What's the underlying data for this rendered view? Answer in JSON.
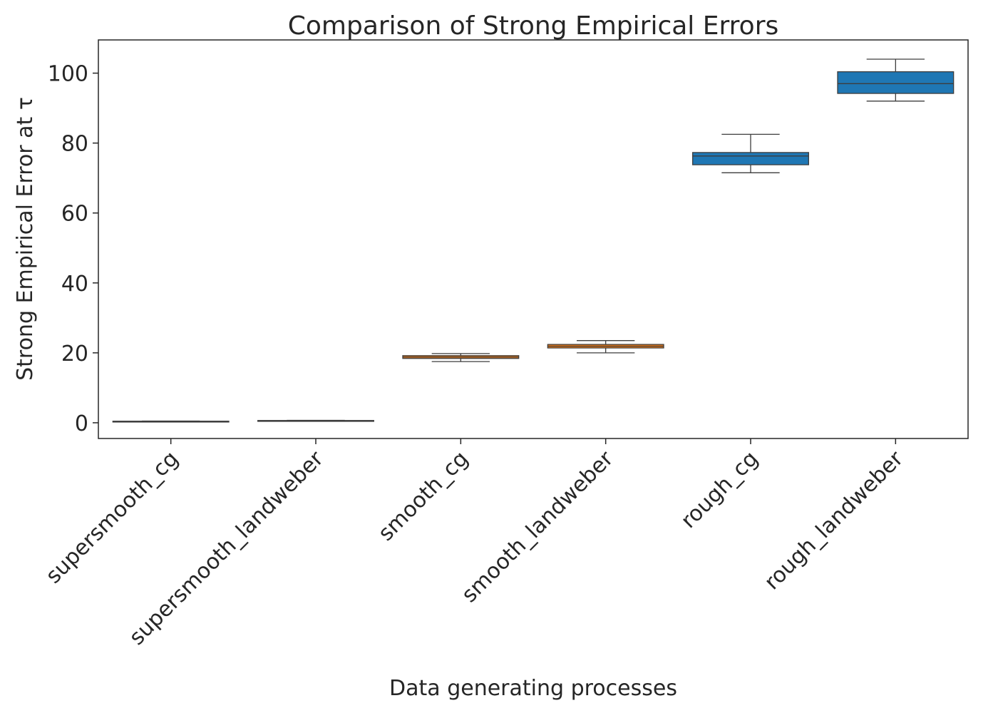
{
  "chart_data": {
    "type": "boxplot",
    "title": "Comparison of Strong Empirical Errors",
    "xlabel": "Data generating processes",
    "ylabel": "Strong Empirical Error at τ",
    "ylim": [
      -4.5,
      109.5
    ],
    "yticks": [
      0,
      20,
      40,
      60,
      80,
      100
    ],
    "grid": false,
    "legend": "none",
    "categories": [
      "supersmooth_cg",
      "supersmooth_landweber",
      "smooth_cg",
      "smooth_landweber",
      "rough_cg",
      "rough_landweber"
    ],
    "boxes": [
      {
        "category": "supersmooth_cg",
        "whisker_low": 0.3,
        "q1": 0.35,
        "median": 0.4,
        "q3": 0.45,
        "whisker_high": 0.5,
        "color": "#1f77b4"
      },
      {
        "category": "supersmooth_landweber",
        "whisker_low": 0.5,
        "q1": 0.55,
        "median": 0.6,
        "q3": 0.65,
        "whisker_high": 0.7,
        "color": "#1f77b4"
      },
      {
        "category": "smooth_cg",
        "whisker_low": 17.5,
        "q1": 18.4,
        "median": 18.8,
        "q3": 19.2,
        "whisker_high": 19.8,
        "color": "#ff7f0e"
      },
      {
        "category": "smooth_landweber",
        "whisker_low": 20.0,
        "q1": 21.4,
        "median": 21.9,
        "q3": 22.4,
        "whisker_high": 23.5,
        "color": "#ff7f0e"
      },
      {
        "category": "rough_cg",
        "whisker_low": 71.5,
        "q1": 73.8,
        "median": 76.3,
        "q3": 77.3,
        "whisker_high": 82.5,
        "color": "#1f77b4"
      },
      {
        "category": "rough_landweber",
        "whisker_low": 92.0,
        "q1": 94.2,
        "median": 97.0,
        "q3": 100.4,
        "whisker_high": 104.0,
        "color": "#1f77b4"
      }
    ]
  }
}
